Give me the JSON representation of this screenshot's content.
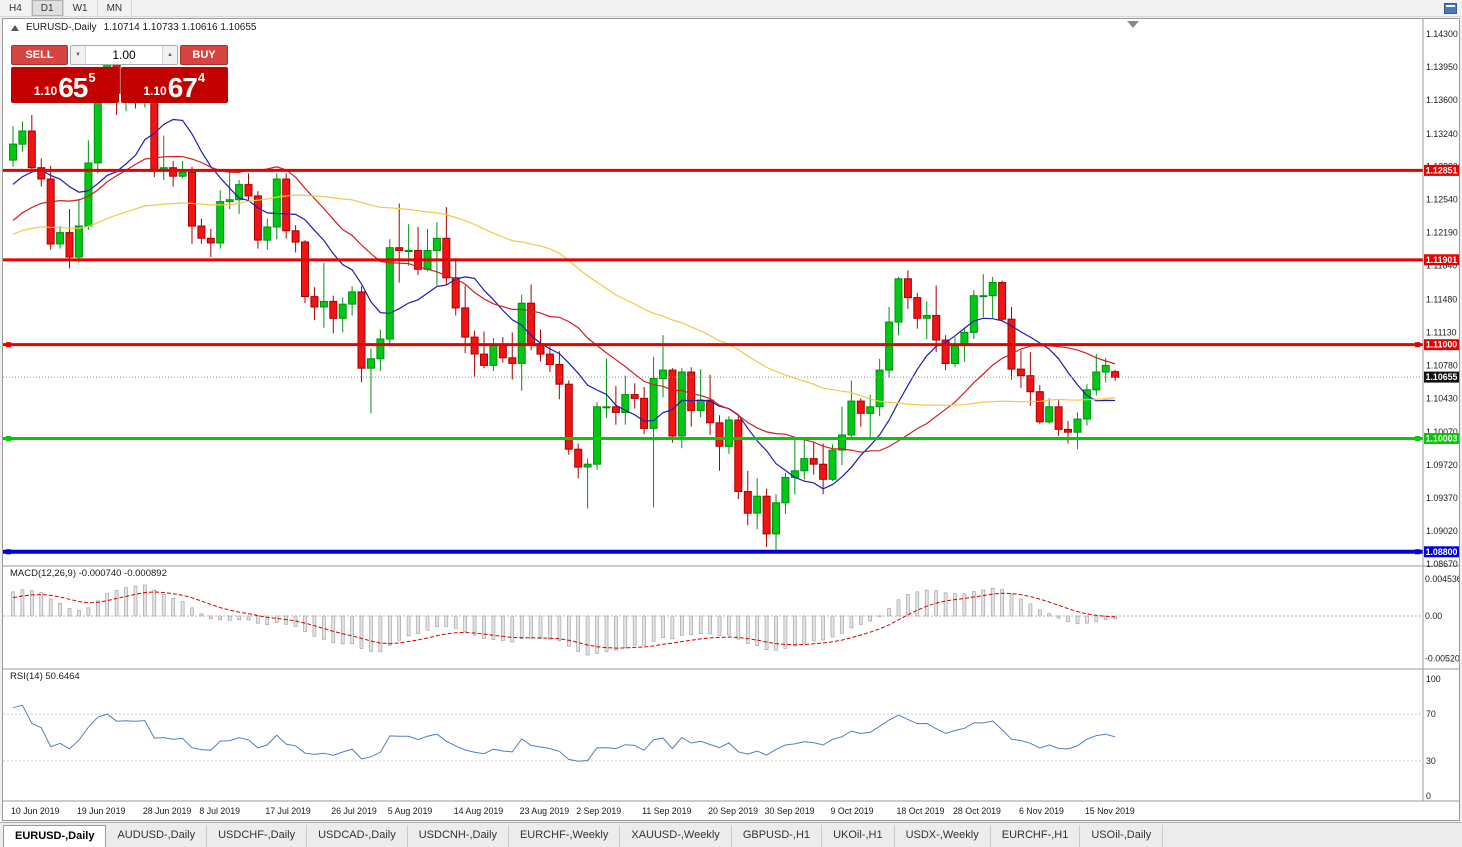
{
  "menubar": {
    "timeframes": [
      {
        "label": "H4",
        "active": false
      },
      {
        "label": "D1",
        "active": true
      },
      {
        "label": "W1",
        "active": false
      },
      {
        "label": "MN",
        "active": false
      }
    ]
  },
  "chart": {
    "title": "EURUSD-,Daily",
    "ohlc_line": "1.10714 1.10733 1.10616 1.10655",
    "trade_panel": {
      "sell_label": "SELL",
      "buy_label": "BUY",
      "volume": "1.00",
      "down_icon": "▼",
      "up_icon": "▲",
      "bid": {
        "prefix": "1.10",
        "big": "65",
        "sup": "5"
      },
      "ask": {
        "prefix": "1.10",
        "big": "67",
        "sup": "4"
      }
    },
    "price_ticks": [
      "1.14300",
      "1.13950",
      "1.13600",
      "1.13240",
      "1.12890",
      "1.12540",
      "1.12190",
      "1.11840",
      "1.11480",
      "1.11130",
      "1.10780",
      "1.10430",
      "1.10070",
      "1.09720",
      "1.09370",
      "1.09020",
      "1.08670"
    ],
    "hlines": [
      {
        "price": 1.12851,
        "label": "1.12851",
        "color": "#e60000",
        "thickness": 3,
        "handles": false
      },
      {
        "price": 1.11901,
        "label": "1.11901",
        "color": "#e60000",
        "thickness": 3,
        "handles": false
      },
      {
        "price": 1.11,
        "label": "1.11000",
        "color": "#e60000",
        "thickness": 3,
        "handles": true
      },
      {
        "price": 1.10003,
        "label": "1.10003",
        "color": "#00cc00",
        "thickness": 3,
        "handles": true
      },
      {
        "price": 1.088,
        "label": "1.08800",
        "color": "#0000dd",
        "thickness": 4,
        "handles": true
      }
    ],
    "current_price": {
      "value": 1.10655,
      "label": "1.10655",
      "color": "#111111"
    },
    "colors": {
      "bull": "#00c814",
      "bull_border": "#00910f",
      "bear": "#f01414",
      "bear_border": "#aa0000",
      "ma_fast": "#1c1cb0",
      "ma_mid": "#d02020",
      "ma_slow": "#f2c84b",
      "macd_signal": "#d40000",
      "macd_bar_fill": "#e4e4e4",
      "macd_bar_border": "#9a9a9a",
      "rsi_line": "#4f81bd",
      "button_red": "#d64541",
      "price_box_red": "#c20000"
    }
  },
  "panels": {
    "macd": {
      "label": "MACD(12,26,9) -0.000740 -0.000892",
      "fast": 12,
      "slow": 26,
      "smooth": 9,
      "axis": [
        {
          "v": 0.004536,
          "t": "0.004536"
        },
        {
          "v": 0,
          "t": "0.00"
        },
        {
          "v": -0.005205,
          "t": "-0.005205"
        }
      ]
    },
    "rsi": {
      "label": "RSI(14) 50.6464",
      "period": 14,
      "levels": [
        70,
        30
      ],
      "axis": [
        {
          "v": 100,
          "t": "100"
        },
        {
          "v": 70,
          "t": "70"
        },
        {
          "v": 30,
          "t": "30"
        },
        {
          "v": 0,
          "t": "0"
        }
      ]
    }
  },
  "time_axis": [
    {
      "i": 0,
      "t": "10 Jun 2019"
    },
    {
      "i": 7,
      "t": "19 Jun 2019"
    },
    {
      "i": 14,
      "t": "28 Jun 2019"
    },
    {
      "i": 20,
      "t": "8 Jul 2019"
    },
    {
      "i": 27,
      "t": "17 Jul 2019"
    },
    {
      "i": 34,
      "t": "26 Jul 2019"
    },
    {
      "i": 40,
      "t": "5 Aug 2019"
    },
    {
      "i": 47,
      "t": "14 Aug 2019"
    },
    {
      "i": 54,
      "t": "23 Aug 2019"
    },
    {
      "i": 60,
      "t": "2 Sep 2019"
    },
    {
      "i": 67,
      "t": "11 Sep 2019"
    },
    {
      "i": 74,
      "t": "20 Sep 2019"
    },
    {
      "i": 80,
      "t": "30 Sep 2019"
    },
    {
      "i": 87,
      "t": "9 Oct 2019"
    },
    {
      "i": 94,
      "t": "18 Oct 2019"
    },
    {
      "i": 100,
      "t": "28 Oct 2019"
    },
    {
      "i": 107,
      "t": "6 Nov 2019"
    },
    {
      "i": 114,
      "t": "15 Nov 2019"
    }
  ],
  "tabs": [
    {
      "label": "EURUSD-,Daily",
      "active": true
    },
    {
      "label": "AUDUSD-,Daily",
      "active": false
    },
    {
      "label": "USDCHF-,Daily",
      "active": false
    },
    {
      "label": "USDCAD-,Daily",
      "active": false
    },
    {
      "label": "USDCNH-,Daily",
      "active": false
    },
    {
      "label": "EURCHF-,Weekly",
      "active": false
    },
    {
      "label": "XAUUSD-,Weekly",
      "active": false
    },
    {
      "label": "GBPUSD-,H1",
      "active": false
    },
    {
      "label": "UKOil-,H1",
      "active": false
    },
    {
      "label": "USDX-,Weekly",
      "active": false
    },
    {
      "label": "EURCHF-,H1",
      "active": false
    },
    {
      "label": "USOil-,Daily",
      "active": false
    }
  ],
  "chart_data": {
    "type": "candlestick",
    "symbol": "EURUSD-",
    "timeframe": "Daily",
    "warmup_closes": [
      1.118,
      1.1166,
      1.1152,
      1.1161,
      1.1174,
      1.1163,
      1.1155,
      1.117,
      1.1182,
      1.1176,
      1.119,
      1.1205,
      1.1198,
      1.1215,
      1.1226,
      1.1219,
      1.1232,
      1.1245,
      1.1239,
      1.1252,
      1.1266,
      1.1259,
      1.1272,
      1.1285,
      1.1279,
      1.1292
    ],
    "moving_averages": [
      {
        "period": 10,
        "color_key": "ma_fast"
      },
      {
        "period": 21,
        "color_key": "ma_mid"
      },
      {
        "period": 50,
        "color_key": "ma_slow"
      }
    ],
    "ohlc": [
      [
        1.1296,
        1.1332,
        1.1289,
        1.1313
      ],
      [
        1.1313,
        1.1337,
        1.1305,
        1.1327
      ],
      [
        1.1327,
        1.1344,
        1.1283,
        1.1288
      ],
      [
        1.1288,
        1.1298,
        1.1268,
        1.1276
      ],
      [
        1.1276,
        1.129,
        1.1201,
        1.1207
      ],
      [
        1.1207,
        1.1226,
        1.1202,
        1.1219
      ],
      [
        1.1219,
        1.1244,
        1.1181,
        1.1193
      ],
      [
        1.1193,
        1.1255,
        1.1187,
        1.1226
      ],
      [
        1.1226,
        1.1317,
        1.1222,
        1.1293
      ],
      [
        1.1293,
        1.1378,
        1.1282,
        1.1369
      ],
      [
        1.1369,
        1.1406,
        1.1362,
        1.14
      ],
      [
        1.14,
        1.1412,
        1.1344,
        1.1367
      ],
      [
        1.1367,
        1.1391,
        1.1348,
        1.137
      ],
      [
        1.137,
        1.1382,
        1.1351,
        1.1368
      ],
      [
        1.1368,
        1.1391,
        1.1352,
        1.1373
      ],
      [
        1.1373,
        1.1375,
        1.1278,
        1.1285
      ],
      [
        1.1285,
        1.1322,
        1.1275,
        1.1288
      ],
      [
        1.1288,
        1.1295,
        1.1268,
        1.1279
      ],
      [
        1.1279,
        1.1295,
        1.1277,
        1.1283
      ],
      [
        1.1283,
        1.1289,
        1.1207,
        1.1226
      ],
      [
        1.1226,
        1.1234,
        1.1207,
        1.1213
      ],
      [
        1.1213,
        1.1223,
        1.1193,
        1.1208
      ],
      [
        1.1208,
        1.1264,
        1.1202,
        1.1252
      ],
      [
        1.1252,
        1.1286,
        1.1244,
        1.1254
      ],
      [
        1.1254,
        1.1275,
        1.1239,
        1.127
      ],
      [
        1.127,
        1.1282,
        1.1252,
        1.1258
      ],
      [
        1.1258,
        1.1263,
        1.1202,
        1.1211
      ],
      [
        1.1211,
        1.1234,
        1.1201,
        1.1225
      ],
      [
        1.1225,
        1.1282,
        1.1212,
        1.1276
      ],
      [
        1.1276,
        1.1282,
        1.1213,
        1.1221
      ],
      [
        1.1221,
        1.1227,
        1.1198,
        1.1209
      ],
      [
        1.1209,
        1.1211,
        1.1144,
        1.1151
      ],
      [
        1.1151,
        1.1161,
        1.1126,
        1.114
      ],
      [
        1.114,
        1.1187,
        1.1118,
        1.1146
      ],
      [
        1.1146,
        1.1152,
        1.1112,
        1.1128
      ],
      [
        1.1128,
        1.115,
        1.1113,
        1.1143
      ],
      [
        1.1143,
        1.1162,
        1.1131,
        1.1156
      ],
      [
        1.1156,
        1.1162,
        1.106,
        1.1075
      ],
      [
        1.1075,
        1.1096,
        1.1027,
        1.1085
      ],
      [
        1.1085,
        1.1116,
        1.1072,
        1.1106
      ],
      [
        1.1106,
        1.1212,
        1.1101,
        1.1203
      ],
      [
        1.1203,
        1.125,
        1.1166,
        1.12
      ],
      [
        1.12,
        1.1228,
        1.1184,
        1.12
      ],
      [
        1.12,
        1.1225,
        1.1174,
        1.118
      ],
      [
        1.118,
        1.1223,
        1.1178,
        1.12
      ],
      [
        1.12,
        1.123,
        1.1163,
        1.1213
      ],
      [
        1.1213,
        1.1246,
        1.1163,
        1.1171
      ],
      [
        1.1171,
        1.1192,
        1.1131,
        1.1139
      ],
      [
        1.1139,
        1.1163,
        1.1091,
        1.1108
      ],
      [
        1.1108,
        1.1115,
        1.1066,
        1.109
      ],
      [
        1.109,
        1.1114,
        1.1075,
        1.1078
      ],
      [
        1.1078,
        1.1107,
        1.1072,
        1.1099
      ],
      [
        1.1099,
        1.1108,
        1.1081,
        1.1086
      ],
      [
        1.1086,
        1.1113,
        1.1063,
        1.108
      ],
      [
        1.108,
        1.1153,
        1.1051,
        1.1144
      ],
      [
        1.1144,
        1.1164,
        1.1094,
        1.1101
      ],
      [
        1.1101,
        1.1116,
        1.1082,
        1.109
      ],
      [
        1.109,
        1.1098,
        1.1071,
        1.1079
      ],
      [
        1.1079,
        1.1093,
        1.1042,
        1.1058
      ],
      [
        1.1058,
        1.1062,
        1.0983,
        1.0989
      ],
      [
        1.0989,
        1.0995,
        1.0958,
        1.097
      ],
      [
        1.097,
        1.0979,
        1.0926,
        1.0973
      ],
      [
        1.0973,
        1.1039,
        1.0967,
        1.1034
      ],
      [
        1.1034,
        1.1085,
        1.1022,
        1.1034
      ],
      [
        1.1034,
        1.1056,
        1.1015,
        1.1028
      ],
      [
        1.1028,
        1.1067,
        1.1015,
        1.1047
      ],
      [
        1.1047,
        1.1059,
        1.1032,
        1.1043
      ],
      [
        1.1043,
        1.1055,
        1.1005,
        1.1011
      ],
      [
        1.1011,
        1.1087,
        1.0927,
        1.1064
      ],
      [
        1.1064,
        1.111,
        1.1044,
        1.1073
      ],
      [
        1.1073,
        1.1075,
        1.0996,
        1.1003
      ],
      [
        1.1003,
        1.1075,
        1.099,
        1.1071
      ],
      [
        1.1071,
        1.1076,
        1.1013,
        1.103
      ],
      [
        1.103,
        1.1074,
        1.1023,
        1.1041
      ],
      [
        1.1041,
        1.1068,
        1.1004,
        1.1017
      ],
      [
        1.1017,
        1.1025,
        1.0966,
        1.0992
      ],
      [
        1.0992,
        1.1024,
        1.0984,
        1.102
      ],
      [
        1.102,
        1.1024,
        1.0936,
        1.0944
      ],
      [
        1.0944,
        1.0966,
        1.0908,
        1.0921
      ],
      [
        1.0921,
        1.0958,
        1.0904,
        1.0939
      ],
      [
        1.0939,
        1.0947,
        1.0885,
        1.0899
      ],
      [
        1.0899,
        1.0941,
        1.0879,
        1.0932
      ],
      [
        1.0932,
        1.0964,
        1.092,
        1.0959
      ],
      [
        1.0959,
        1.0999,
        1.0941,
        1.0966
      ],
      [
        1.0966,
        1.0999,
        1.0957,
        1.0979
      ],
      [
        1.0979,
        1.0996,
        1.0962,
        1.0973
      ],
      [
        1.0973,
        1.0995,
        1.0941,
        1.0957
      ],
      [
        1.0957,
        1.0994,
        1.0955,
        1.0988
      ],
      [
        1.0988,
        1.1034,
        1.0972,
        1.1004
      ],
      [
        1.1004,
        1.1062,
        1.1002,
        1.104
      ],
      [
        1.104,
        1.1043,
        1.1013,
        1.1027
      ],
      [
        1.1027,
        1.1047,
        1.1001,
        1.1034
      ],
      [
        1.1034,
        1.1085,
        1.1024,
        1.1073
      ],
      [
        1.1073,
        1.114,
        1.1065,
        1.1124
      ],
      [
        1.1124,
        1.1172,
        1.111,
        1.117
      ],
      [
        1.117,
        1.1179,
        1.1138,
        1.115
      ],
      [
        1.115,
        1.1155,
        1.1117,
        1.1128
      ],
      [
        1.1128,
        1.1146,
        1.1106,
        1.1131
      ],
      [
        1.1131,
        1.1163,
        1.1092,
        1.1105
      ],
      [
        1.1105,
        1.111,
        1.1073,
        1.108
      ],
      [
        1.108,
        1.1108,
        1.1076,
        1.1099
      ],
      [
        1.1099,
        1.1118,
        1.1082,
        1.1113
      ],
      [
        1.1113,
        1.1158,
        1.1106,
        1.1152
      ],
      [
        1.1152,
        1.1175,
        1.1129,
        1.1152
      ],
      [
        1.1152,
        1.1172,
        1.1128,
        1.1166
      ],
      [
        1.1166,
        1.1168,
        1.1125,
        1.1127
      ],
      [
        1.1127,
        1.114,
        1.1063,
        1.1074
      ],
      [
        1.1074,
        1.1094,
        1.1054,
        1.1067
      ],
      [
        1.1067,
        1.1092,
        1.1035,
        1.105
      ],
      [
        1.105,
        1.1057,
        1.1016,
        1.1018
      ],
      [
        1.1018,
        1.1043,
        1.1016,
        1.1034
      ],
      [
        1.1034,
        1.1041,
        1.1003,
        1.101
      ],
      [
        1.101,
        1.1019,
        1.0995,
        1.1007
      ],
      [
        1.1007,
        1.1028,
        1.0989,
        1.1021
      ],
      [
        1.1021,
        1.1058,
        1.1014,
        1.1052
      ],
      [
        1.1052,
        1.109,
        1.1046,
        1.1071
      ],
      [
        1.1071,
        1.1086,
        1.106,
        1.1078
      ],
      [
        1.10714,
        1.10733,
        1.10616,
        1.10655
      ]
    ]
  }
}
